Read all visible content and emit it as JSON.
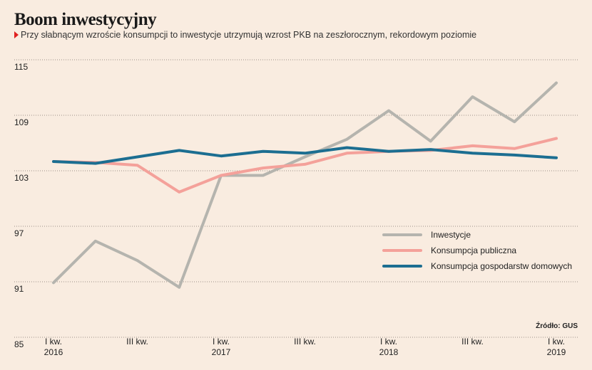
{
  "header": {
    "title": "Boom inwestycyjny",
    "subtitle": "Przy słabnącym wzroście konsumpcji to inwestycje utrzymują wzrost PKB na zeszłorocznym, rekordowym poziomie"
  },
  "source": "Źródło: GUS",
  "colors": {
    "background": "#f9ece0",
    "accent_marker": "#e02020",
    "inwestycje": "#b5b4ae",
    "konsumpcja_publiczna": "#f4a19a",
    "konsumpcja_gospodarstw": "#1c6e91"
  },
  "chart_data": {
    "type": "line",
    "title": "Boom inwestycyjny",
    "x": [
      "I kw. 2016",
      "II kw. 2016",
      "III kw. 2016",
      "IV kw. 2016",
      "I kw. 2017",
      "II kw. 2017",
      "III kw. 2017",
      "IV kw. 2017",
      "I kw. 2018",
      "II kw. 2018",
      "III kw. 2018",
      "IV kw. 2018",
      "I kw. 2019"
    ],
    "tick_labels": [
      {
        "index": 0,
        "line1": "I kw.",
        "line2": "2016"
      },
      {
        "index": 2,
        "line1": "III kw.",
        "line2": ""
      },
      {
        "index": 4,
        "line1": "I kw.",
        "line2": "2017"
      },
      {
        "index": 6,
        "line1": "III kw.",
        "line2": ""
      },
      {
        "index": 8,
        "line1": "I kw.",
        "line2": "2018"
      },
      {
        "index": 10,
        "line1": "III kw.",
        "line2": ""
      },
      {
        "index": 12,
        "line1": "I kw.",
        "line2": "2019"
      }
    ],
    "y_ticks": [
      85,
      91,
      97,
      103,
      109,
      115
    ],
    "ylim": [
      85,
      115
    ],
    "grid": "horizontal dotted",
    "legend_position": "bottom-right",
    "series": [
      {
        "name": "Inwestycje",
        "color_key": "inwestycje",
        "values": [
          90.9,
          95.4,
          93.3,
          90.4,
          102.5,
          102.5,
          104.5,
          106.4,
          109.5,
          106.2,
          111.0,
          108.3,
          112.5
        ]
      },
      {
        "name": "Konsumpcja publiczna",
        "color_key": "konsumpcja_publiczna",
        "values": [
          104.0,
          103.9,
          103.6,
          100.7,
          102.5,
          103.3,
          103.7,
          104.9,
          105.1,
          105.2,
          105.7,
          105.4,
          106.5
        ]
      },
      {
        "name": "Konsumpcja gospodarstw domowych",
        "color_key": "konsumpcja_gospodarstw",
        "values": [
          104.0,
          103.8,
          104.5,
          105.2,
          104.6,
          105.1,
          104.9,
          105.5,
          105.1,
          105.3,
          104.9,
          104.7,
          104.4
        ]
      }
    ]
  }
}
